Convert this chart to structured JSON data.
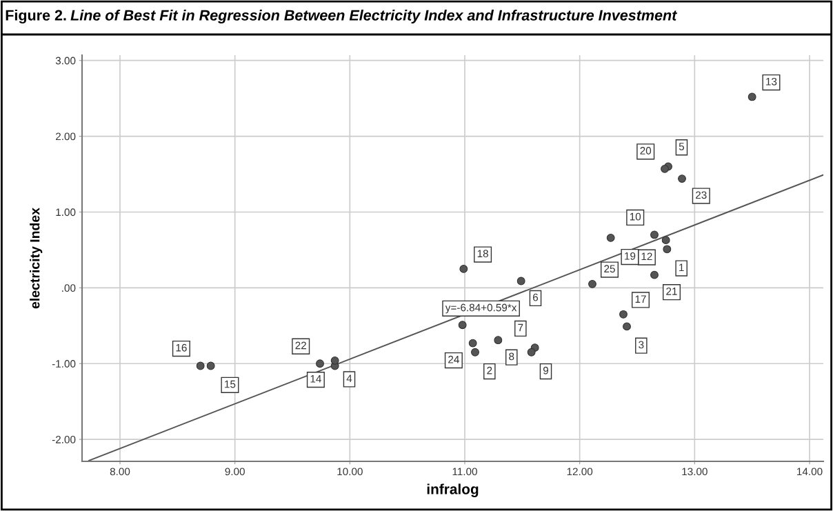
{
  "chart_data": {
    "type": "scatter",
    "title": "Figure 2.",
    "subtitle": "Line of Best Fit in Regression Between Electricity Index and Infrastructure Investment",
    "xlabel": "infralog",
    "ylabel": "electricity Index",
    "series": [
      {
        "type": "scatter",
        "color": "#555555",
        "marker": "circle",
        "x": [
          12.76,
          11.09,
          12.41,
          9.87,
          12.77,
          11.49,
          11.61,
          11.29,
          11.58,
          12.65,
          10.98,
          12.75,
          13.5,
          9.87,
          8.79,
          8.7,
          12.38,
          10.99,
          12.27,
          12.74,
          12.65,
          9.74,
          12.89,
          11.07,
          12.11
        ],
        "values": [
          0.51,
          -0.85,
          -0.51,
          -1.03,
          1.6,
          0.09,
          -0.79,
          -0.69,
          -0.85,
          0.7,
          -0.49,
          0.63,
          2.52,
          -0.96,
          -1.03,
          -1.03,
          -0.35,
          0.25,
          0.66,
          1.57,
          0.17,
          -1.0,
          1.44,
          -0.73,
          0.05
        ]
      },
      {
        "type": "line",
        "color": "#555555",
        "x": [
          7.73,
          14.12
        ],
        "values": [
          -2.28,
          1.49
        ]
      }
    ],
    "annotations": [
      {
        "text": "1",
        "x": 12.76,
        "y": 0.51
      },
      {
        "text": "2",
        "x": 11.09,
        "y": -0.85
      },
      {
        "text": "3",
        "x": 12.41,
        "y": -0.51
      },
      {
        "text": "4",
        "x": 9.87,
        "y": -1.03
      },
      {
        "text": "5",
        "x": 12.77,
        "y": 1.6
      },
      {
        "text": "6",
        "x": 11.49,
        "y": 0.09
      },
      {
        "text": "7",
        "x": 11.61,
        "y": -0.79
      },
      {
        "text": "8",
        "x": 11.29,
        "y": -0.69
      },
      {
        "text": "9",
        "x": 11.58,
        "y": -0.85
      },
      {
        "text": "10",
        "x": 12.65,
        "y": 0.7
      },
      {
        "text": "12",
        "x": 12.75,
        "y": 0.63
      },
      {
        "text": "13",
        "x": 13.5,
        "y": 2.52
      },
      {
        "text": "14",
        "x": 9.87,
        "y": -0.96
      },
      {
        "text": "15",
        "x": 8.79,
        "y": -1.03
      },
      {
        "text": "16",
        "x": 8.7,
        "y": -1.03
      },
      {
        "text": "17",
        "x": 12.38,
        "y": -0.35
      },
      {
        "text": "18",
        "x": 10.99,
        "y": 0.25
      },
      {
        "text": "19",
        "x": 12.27,
        "y": 0.66
      },
      {
        "text": "20",
        "x": 12.74,
        "y": 1.57
      },
      {
        "text": "21",
        "x": 12.65,
        "y": 0.17
      },
      {
        "text": "22",
        "x": 9.74,
        "y": -1.0
      },
      {
        "text": "23",
        "x": 12.89,
        "y": 1.44
      },
      {
        "text": "24",
        "x": 11.07,
        "y": -0.73
      },
      {
        "text": "25",
        "x": 12.11,
        "y": 0.05
      },
      {
        "text": "y=-6.84+0.59*x",
        "x": 10.75,
        "y": -0.5
      }
    ],
    "xlim": [
      7.67,
      14.12
    ],
    "ylim": [
      -2.29,
      3.07
    ],
    "xticks": [
      {
        "value": 8,
        "label": "8.00"
      },
      {
        "value": 9,
        "label": "9.00"
      },
      {
        "value": 10,
        "label": "10.00"
      },
      {
        "value": 11,
        "label": "11.00"
      },
      {
        "value": 12,
        "label": "12.00"
      },
      {
        "value": 13,
        "label": "13.00"
      },
      {
        "value": 14,
        "label": "14.00"
      }
    ],
    "yticks": [
      {
        "value": -2,
        "label": "-2.00"
      },
      {
        "value": -1,
        "label": "-1.00"
      },
      {
        "value": 0,
        "label": ".00"
      },
      {
        "value": 1,
        "label": "1.00"
      },
      {
        "value": 2,
        "label": "2.00"
      },
      {
        "value": 3,
        "label": "3.00"
      }
    ],
    "grid": true,
    "legend": false
  }
}
